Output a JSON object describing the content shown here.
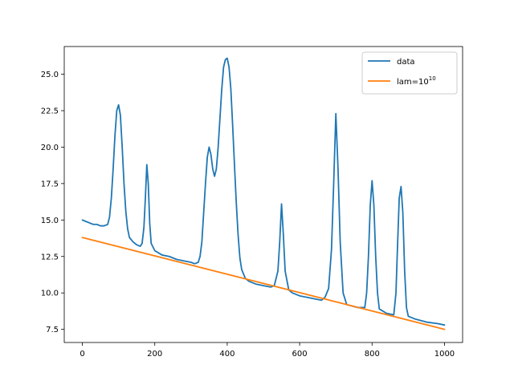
{
  "chart_data": {
    "type": "line",
    "title": "",
    "xlabel": "",
    "ylabel": "",
    "xlim": [
      -50,
      1050
    ],
    "ylim": [
      6.6,
      26.9
    ],
    "xticks": [
      0,
      200,
      400,
      600,
      800,
      1000
    ],
    "yticks": [
      7.5,
      10.0,
      12.5,
      15.0,
      17.5,
      20.0,
      22.5,
      25.0
    ],
    "xtick_labels": [
      "0",
      "200",
      "400",
      "600",
      "800",
      "1000"
    ],
    "ytick_labels": [
      "7.5",
      "10.0",
      "12.5",
      "15.0",
      "17.5",
      "20.0",
      "22.5",
      "25.0"
    ],
    "grid": false,
    "legend_position": "top-right",
    "legend": {
      "data_label": "data",
      "fit_prefix": "lam=10",
      "fit_exponent": "10"
    },
    "series": [
      {
        "name": "data",
        "color": "#1f77b4",
        "points": [
          [
            0,
            15.0
          ],
          [
            10,
            14.9
          ],
          [
            20,
            14.8
          ],
          [
            30,
            14.7
          ],
          [
            40,
            14.7
          ],
          [
            50,
            14.6
          ],
          [
            60,
            14.6
          ],
          [
            70,
            14.7
          ],
          [
            75,
            15.2
          ],
          [
            80,
            16.5
          ],
          [
            85,
            18.5
          ],
          [
            90,
            20.8
          ],
          [
            95,
            22.5
          ],
          [
            100,
            22.9
          ],
          [
            105,
            22.2
          ],
          [
            110,
            20.0
          ],
          [
            115,
            17.5
          ],
          [
            120,
            15.6
          ],
          [
            125,
            14.4
          ],
          [
            130,
            13.8
          ],
          [
            140,
            13.5
          ],
          [
            150,
            13.3
          ],
          [
            160,
            13.2
          ],
          [
            165,
            13.4
          ],
          [
            170,
            14.5
          ],
          [
            174,
            16.5
          ],
          [
            178,
            18.8
          ],
          [
            182,
            17.5
          ],
          [
            186,
            14.8
          ],
          [
            190,
            13.4
          ],
          [
            200,
            12.9
          ],
          [
            220,
            12.6
          ],
          [
            240,
            12.5
          ],
          [
            260,
            12.3
          ],
          [
            280,
            12.2
          ],
          [
            300,
            12.1
          ],
          [
            310,
            12.0
          ],
          [
            320,
            12.1
          ],
          [
            325,
            12.5
          ],
          [
            330,
            13.5
          ],
          [
            335,
            15.5
          ],
          [
            340,
            17.5
          ],
          [
            345,
            19.3
          ],
          [
            350,
            20.0
          ],
          [
            355,
            19.5
          ],
          [
            360,
            18.5
          ],
          [
            365,
            18.0
          ],
          [
            370,
            18.5
          ],
          [
            375,
            20.0
          ],
          [
            380,
            22.0
          ],
          [
            385,
            24.0
          ],
          [
            390,
            25.5
          ],
          [
            395,
            26.0
          ],
          [
            400,
            26.1
          ],
          [
            405,
            25.5
          ],
          [
            410,
            24.0
          ],
          [
            415,
            21.5
          ],
          [
            420,
            18.8
          ],
          [
            425,
            16.2
          ],
          [
            430,
            14.0
          ],
          [
            435,
            12.4
          ],
          [
            440,
            11.6
          ],
          [
            450,
            11.0
          ],
          [
            460,
            10.8
          ],
          [
            480,
            10.6
          ],
          [
            500,
            10.5
          ],
          [
            520,
            10.4
          ],
          [
            530,
            10.5
          ],
          [
            540,
            11.5
          ],
          [
            545,
            13.5
          ],
          [
            550,
            16.1
          ],
          [
            555,
            14.0
          ],
          [
            560,
            11.5
          ],
          [
            570,
            10.2
          ],
          [
            580,
            10.0
          ],
          [
            600,
            9.8
          ],
          [
            620,
            9.7
          ],
          [
            640,
            9.6
          ],
          [
            660,
            9.5
          ],
          [
            670,
            9.7
          ],
          [
            680,
            10.3
          ],
          [
            688,
            13.0
          ],
          [
            694,
            17.5
          ],
          [
            700,
            22.3
          ],
          [
            706,
            18.5
          ],
          [
            712,
            13.5
          ],
          [
            720,
            10.0
          ],
          [
            730,
            9.2
          ],
          [
            760,
            9.0
          ],
          [
            780,
            9.0
          ],
          [
            785,
            10.0
          ],
          [
            790,
            12.5
          ],
          [
            795,
            16.0
          ],
          [
            800,
            17.7
          ],
          [
            805,
            16.0
          ],
          [
            810,
            12.5
          ],
          [
            815,
            10.0
          ],
          [
            820,
            8.9
          ],
          [
            840,
            8.6
          ],
          [
            860,
            8.5
          ],
          [
            866,
            10.0
          ],
          [
            870,
            13.0
          ],
          [
            875,
            16.5
          ],
          [
            880,
            17.3
          ],
          [
            885,
            15.5
          ],
          [
            890,
            11.5
          ],
          [
            895,
            9.0
          ],
          [
            900,
            8.4
          ],
          [
            920,
            8.2
          ],
          [
            950,
            8.0
          ],
          [
            980,
            7.9
          ],
          [
            1000,
            7.8
          ]
        ]
      },
      {
        "name": "lam=10^10",
        "color": "#ff7f0e",
        "points": [
          [
            0,
            13.8
          ],
          [
            1000,
            7.5
          ]
        ]
      }
    ]
  }
}
